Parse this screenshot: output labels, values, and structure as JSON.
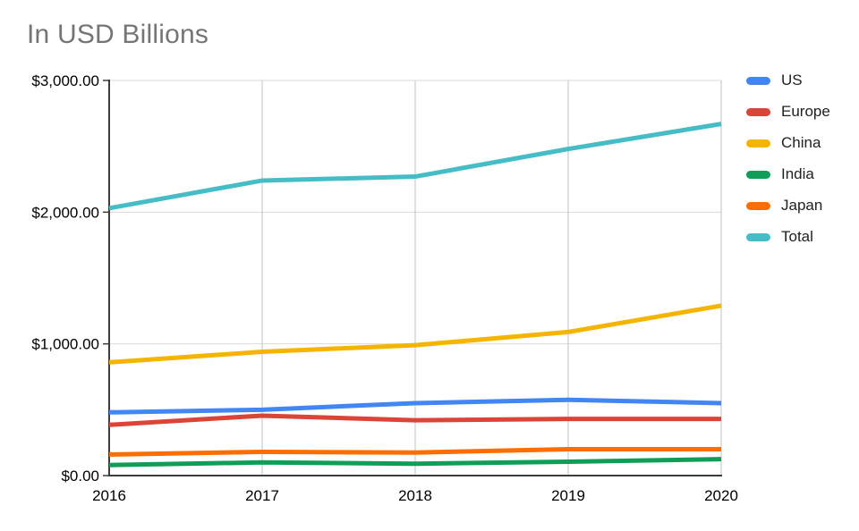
{
  "page": {
    "background": "#ffffff"
  },
  "title": {
    "text": "In USD Billions",
    "color": "#757575"
  },
  "chart_data": {
    "type": "line",
    "title": "In USD Billions",
    "categories": [
      "2016",
      "2017",
      "2018",
      "2019",
      "2020"
    ],
    "series": [
      {
        "name": "US",
        "color": "#4285F4",
        "values": [
          480,
          500,
          550,
          575,
          550
        ]
      },
      {
        "name": "Europe",
        "color": "#DB4437",
        "values": [
          385,
          455,
          420,
          430,
          430
        ]
      },
      {
        "name": "China",
        "color": "#F4B400",
        "values": [
          860,
          940,
          990,
          1090,
          1290
        ]
      },
      {
        "name": "India",
        "color": "#0F9D58",
        "values": [
          80,
          100,
          90,
          105,
          125
        ]
      },
      {
        "name": "Japan",
        "color": "#FF6D01",
        "values": [
          160,
          180,
          175,
          200,
          200
        ]
      },
      {
        "name": "Total",
        "color": "#46BDC6",
        "values": [
          2030,
          2240,
          2270,
          2480,
          2670
        ]
      }
    ],
    "xlabel": "",
    "ylabel": "",
    "ylim": [
      0,
      3000
    ],
    "y_ticks": [
      {
        "value": 0,
        "label": "$0.00"
      },
      {
        "value": 1000,
        "label": "$1,000.00"
      },
      {
        "value": 2000,
        "label": "$2,000.00"
      },
      {
        "value": 3000,
        "label": "$3,000.00"
      }
    ],
    "grid": true,
    "legend_position": "right"
  },
  "style": {
    "axis_color": "#3c3c3c",
    "h_grid_color": "#d9d9d9",
    "v_grid_color": "#c2c2c2",
    "tick_label_color": "#000000",
    "legend_text_color": "#212121"
  }
}
